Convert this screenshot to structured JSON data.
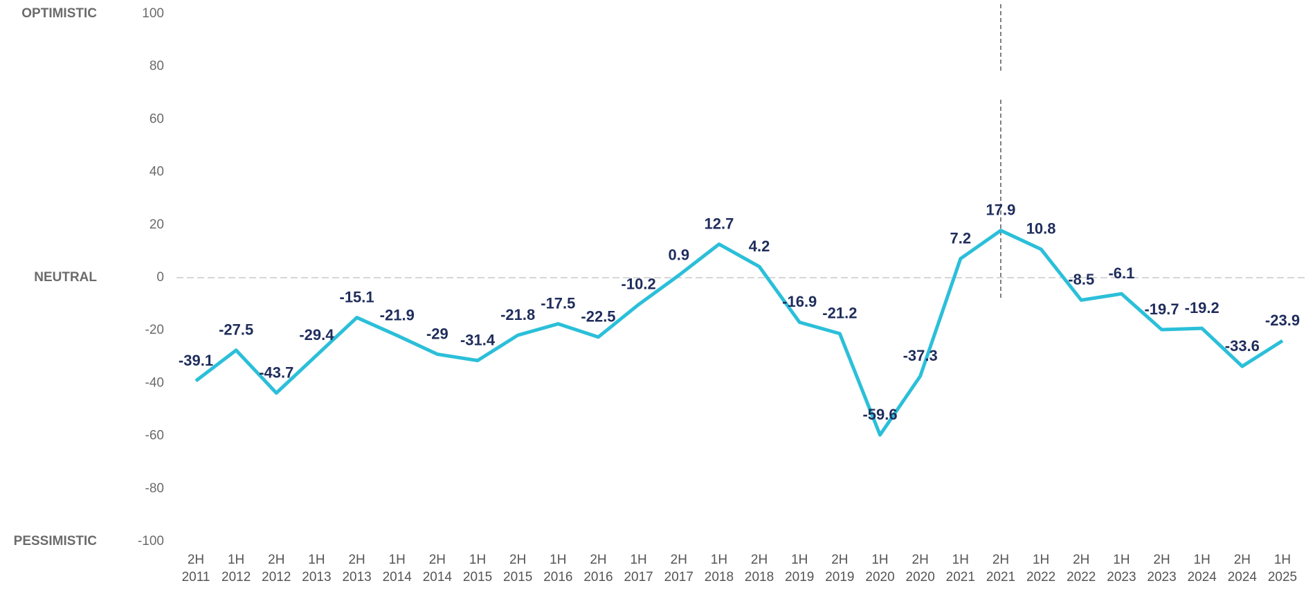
{
  "chart_data": {
    "type": "line",
    "categories": [
      [
        "2H",
        "2011"
      ],
      [
        "1H",
        "2012"
      ],
      [
        "2H",
        "2012"
      ],
      [
        "1H",
        "2013"
      ],
      [
        "2H",
        "2013"
      ],
      [
        "1H",
        "2014"
      ],
      [
        "2H",
        "2014"
      ],
      [
        "1H",
        "2015"
      ],
      [
        "2H",
        "2015"
      ],
      [
        "1H",
        "2016"
      ],
      [
        "2H",
        "2016"
      ],
      [
        "1H",
        "2017"
      ],
      [
        "2H",
        "2017"
      ],
      [
        "1H",
        "2018"
      ],
      [
        "2H",
        "2018"
      ],
      [
        "1H",
        "2019"
      ],
      [
        "2H",
        "2019"
      ],
      [
        "1H",
        "2020"
      ],
      [
        "2H",
        "2020"
      ],
      [
        "1H",
        "2021"
      ],
      [
        "2H",
        "2021"
      ],
      [
        "1H",
        "2022"
      ],
      [
        "2H",
        "2022"
      ],
      [
        "1H",
        "2023"
      ],
      [
        "2H",
        "2023"
      ],
      [
        "1H",
        "2024"
      ],
      [
        "2H",
        "2024"
      ],
      [
        "1H",
        "2025"
      ]
    ],
    "series": [
      {
        "color": "#2bbfd9",
        "values": [
          -39.1,
          -27.5,
          -43.7,
          -29.4,
          -15.1,
          -21.9,
          -29,
          -31.4,
          -21.8,
          -17.5,
          -22.5,
          -10.2,
          0.9,
          12.7,
          4.2,
          -16.9,
          -21.2,
          -59.6,
          -37.3,
          7.2,
          17.9,
          10.8,
          -8.5,
          -6.1,
          -19.7,
          -19.2,
          -33.6,
          -23.9
        ]
      }
    ],
    "ylim": [
      -100,
      100
    ],
    "yticks": [
      -100,
      -80,
      -60,
      -40,
      -20,
      0,
      20,
      40,
      60,
      80,
      100
    ],
    "annotations": [
      {
        "text": "OPTIMISTIC",
        "y": 100
      },
      {
        "text": "NEUTRAL",
        "y": 0
      },
      {
        "text": "PESSIMISTIC",
        "y": -100
      }
    ]
  }
}
